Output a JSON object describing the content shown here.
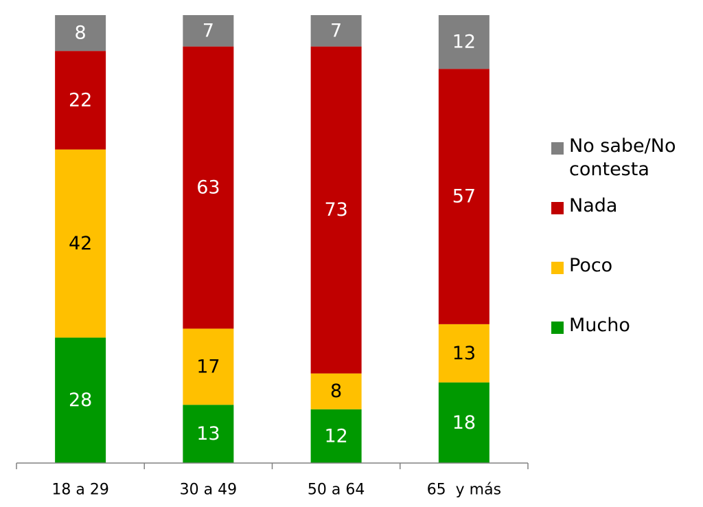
{
  "chart_data": {
    "type": "bar",
    "stacked": true,
    "categories": [
      "18 a 29",
      "30 a 49",
      "50 a 64",
      "65  y más"
    ],
    "series": [
      {
        "name": "Mucho",
        "color": "#009900",
        "label_color": "#ffffff",
        "values": [
          28,
          13,
          12,
          18
        ]
      },
      {
        "name": "Poco",
        "color": "#FFC000",
        "label_color": "#000000",
        "values": [
          42,
          17,
          8,
          13
        ]
      },
      {
        "name": "Nada",
        "color": "#C00000",
        "label_color": "#ffffff",
        "values": [
          22,
          63,
          73,
          57
        ]
      },
      {
        "name": "No sabe/No contesta",
        "color": "#808080",
        "label_color": "#ffffff",
        "values": [
          8,
          7,
          7,
          12
        ]
      }
    ],
    "legend_order": [
      "No sabe/No contesta",
      "Nada",
      "Poco",
      "Mucho"
    ],
    "legend_position": "right",
    "ylim": [
      0,
      100
    ],
    "grid": false,
    "y_axis_visible": false
  }
}
